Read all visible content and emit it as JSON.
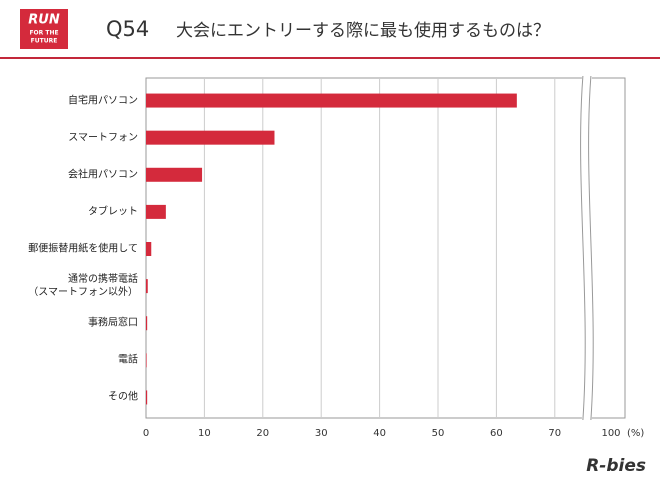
{
  "header": {
    "logo": [
      "RUN",
      "FOR THE",
      "FUTURE"
    ],
    "brand": "R-bies"
  },
  "chart_data": {
    "type": "bar",
    "orientation": "horizontal",
    "question": "Q54",
    "title": "大会にエントリーする際に最も使用するものは？",
    "x_label": "(%)",
    "categories": [
      "自宅用パソコン",
      "スマートフォン",
      "会社用パソコン",
      "タブレット",
      "郵便振替用紙を使用して",
      "通常の携帯電話\n（スマートフォン以外）",
      "事務局窓口",
      "電話",
      "その他"
    ],
    "values": [
      63.5,
      22,
      9.6,
      3.4,
      0.9,
      0.3,
      0.2,
      0.1,
      0.2
    ],
    "color": "#d42a3c",
    "xlim": [
      0,
      100
    ],
    "xticks": [
      0,
      10,
      20,
      30,
      40,
      50,
      60,
      70,
      100
    ],
    "axis_break": true,
    "grid": true
  }
}
